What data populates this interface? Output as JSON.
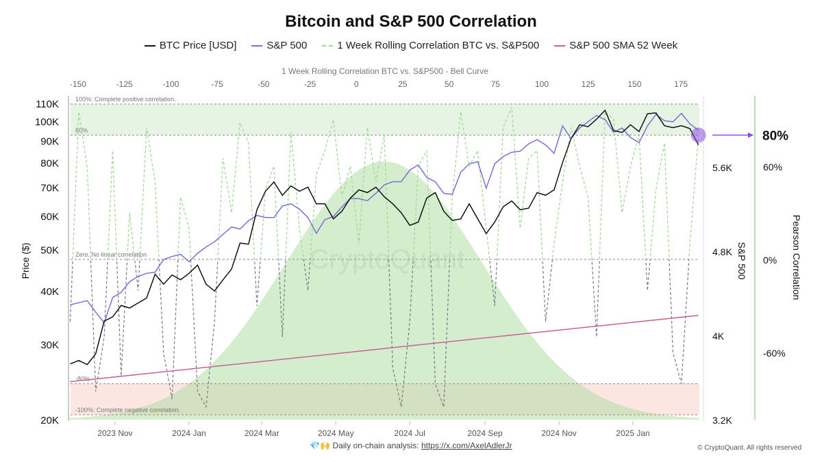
{
  "title": "Bitcoin and S&P 500 Correlation",
  "legend": [
    {
      "label": "BTC Price [USD]",
      "color": "#111111",
      "style": "solid"
    },
    {
      "label": "S&P 500",
      "color": "#7b6fd6",
      "style": "solid"
    },
    {
      "label": "1 Week Rolling Correlation BTC vs. S&P500",
      "color": "#9bd88f",
      "style": "dashed"
    },
    {
      "label": "S&P 500 SMA 52 Week",
      "color": "#c9609a",
      "style": "solid"
    }
  ],
  "watermark": "CryptoQuant",
  "footer": {
    "text": "💎🙌 Daily on-chain analysis: ",
    "link": "https://x.com/AxelAdlerJr",
    "copyright": "© CryptoQuant. All rights reserved"
  },
  "annotation": {
    "label": "80%",
    "color": "#8a4fe0"
  },
  "chart_data": {
    "type": "line",
    "title": "Bitcoin and S&P 500 Correlation",
    "x_type": "date",
    "x_ticks": [
      "2023 Nov",
      "2024 Jan",
      "2024 Mar",
      "2024 May",
      "2024 Jul",
      "2024 Sep",
      "2024 Nov",
      "2025 Jan"
    ],
    "x_tick_dates": [
      "2023-11-01",
      "2024-01-01",
      "2024-03-01",
      "2024-05-01",
      "2024-07-01",
      "2024-09-01",
      "2024-11-01",
      "2025-01-01"
    ],
    "dates": [
      "2023-09-25",
      "2023-10-02",
      "2023-10-09",
      "2023-10-16",
      "2023-10-23",
      "2023-10-30",
      "2023-11-06",
      "2023-11-13",
      "2023-11-20",
      "2023-11-27",
      "2023-12-04",
      "2023-12-11",
      "2023-12-18",
      "2023-12-25",
      "2024-01-01",
      "2024-01-08",
      "2024-01-15",
      "2024-01-22",
      "2024-01-29",
      "2024-02-05",
      "2024-02-12",
      "2024-02-19",
      "2024-02-26",
      "2024-03-04",
      "2024-03-11",
      "2024-03-18",
      "2024-03-25",
      "2024-04-01",
      "2024-04-08",
      "2024-04-15",
      "2024-04-22",
      "2024-04-29",
      "2024-05-06",
      "2024-05-13",
      "2024-05-20",
      "2024-05-27",
      "2024-06-03",
      "2024-06-10",
      "2024-06-17",
      "2024-06-24",
      "2024-07-01",
      "2024-07-08",
      "2024-07-15",
      "2024-07-22",
      "2024-07-29",
      "2024-08-05",
      "2024-08-12",
      "2024-08-19",
      "2024-08-26",
      "2024-09-02",
      "2024-09-09",
      "2024-09-16",
      "2024-09-23",
      "2024-09-30",
      "2024-10-07",
      "2024-10-14",
      "2024-10-21",
      "2024-10-28",
      "2024-11-04",
      "2024-11-11",
      "2024-11-18",
      "2024-11-25",
      "2024-12-02",
      "2024-12-09",
      "2024-12-16",
      "2024-12-23",
      "2024-12-30",
      "2025-01-06",
      "2025-01-13",
      "2025-01-20",
      "2025-01-27",
      "2025-02-03",
      "2025-02-10",
      "2025-02-17",
      "2025-02-24"
    ],
    "left_axis": {
      "label": "Price ($)",
      "scale": "log",
      "range": [
        20000,
        110000
      ],
      "ticks": [
        20000,
        30000,
        40000,
        50000,
        60000,
        70000,
        80000,
        90000,
        100000,
        110000
      ],
      "tick_labels": [
        "20K",
        "30K",
        "40K",
        "50K",
        "60K",
        "70K",
        "80K",
        "90K",
        "100K",
        "110K"
      ]
    },
    "right_axis_sp": {
      "label": "S&P 500",
      "scale": "linear",
      "range": [
        3200,
        6190
      ],
      "ticks": [
        3200,
        4000,
        4800,
        5600
      ],
      "tick_labels": [
        "3.2K",
        "4K",
        "4.8K",
        "5.6K"
      ]
    },
    "right_axis_corr": {
      "label": "Pearson Correlation",
      "range": [
        -100,
        100
      ],
      "ticks": [
        -60,
        0,
        60,
        80
      ],
      "tick_labels": [
        "-60%",
        "0%",
        "60%",
        "80%"
      ]
    },
    "top_axis": {
      "label": "1 Week Rolling Correlation BTC vs. S&P500 - Bell Curve",
      "ticks": [
        -150,
        -125,
        -100,
        -75,
        -50,
        -25,
        0,
        25,
        50,
        75,
        100,
        125,
        150,
        175
      ],
      "tick_labels": [
        "-150",
        "-125",
        "-100",
        "-75",
        "-50",
        "-25",
        "0",
        "25",
        "50",
        "75",
        "100",
        "125",
        "150",
        "175"
      ]
    },
    "bell_curve": {
      "mean": 15,
      "std": 53,
      "range": [
        -155,
        185
      ]
    },
    "reference_lines": [
      {
        "value": 100,
        "label": "100%: Complete positive correlation."
      },
      {
        "value": 80,
        "label": "80%"
      },
      {
        "value": 0,
        "label": "Zero. No linear correlation"
      },
      {
        "value": -80,
        "label": "-80%"
      },
      {
        "value": -100,
        "label": "-100%: Complete negative correlation."
      }
    ],
    "bands": [
      {
        "from": 80,
        "to": 100,
        "color": "#e6f4e4"
      },
      {
        "from": -100,
        "to": -80,
        "color": "#fbe6e2"
      }
    ],
    "series": [
      {
        "name": "BTC Price [USD]",
        "axis": "left",
        "color": "#111111",
        "values": [
          27000,
          27500,
          26900,
          28500,
          34000,
          34800,
          37000,
          36500,
          37500,
          38500,
          43800,
          41500,
          43600,
          42500,
          44000,
          46000,
          41500,
          40000,
          42500,
          45000,
          51800,
          51500,
          62000,
          68500,
          72000,
          67000,
          70500,
          68500,
          70000,
          64000,
          64000,
          59000,
          61500,
          66000,
          69000,
          68000,
          70000,
          66500,
          64000,
          61000,
          57000,
          58000,
          66000,
          68000,
          61500,
          58500,
          59000,
          64000,
          59000,
          54500,
          58000,
          63000,
          65000,
          62000,
          62500,
          68000,
          67000,
          69000,
          80000,
          91000,
          98000,
          97000,
          101000,
          106000,
          95000,
          94000,
          98000,
          94500,
          104000,
          104500,
          97500,
          96500,
          97500,
          96000,
          88000
        ]
      },
      {
        "name": "S&P 500",
        "axis": "right_sp",
        "color": "#7b6fd6",
        "values": [
          4290,
          4310,
          4330,
          4220,
          4120,
          4360,
          4410,
          4510,
          4560,
          4590,
          4600,
          4720,
          4750,
          4770,
          4700,
          4780,
          4840,
          4890,
          4960,
          5030,
          5010,
          5090,
          5140,
          5120,
          5120,
          5230,
          5250,
          5200,
          5120,
          4970,
          5100,
          5130,
          5220,
          5300,
          5300,
          5280,
          5350,
          5430,
          5460,
          5460,
          5570,
          5620,
          5500,
          5460,
          5350,
          5340,
          5550,
          5630,
          5650,
          5400,
          5630,
          5700,
          5740,
          5750,
          5820,
          5860,
          5810,
          5730,
          5990,
          5870,
          5970,
          6030,
          6090,
          6050,
          5930,
          5970,
          5880,
          5830,
          5990,
          6100,
          6040,
          6030,
          6110,
          6010,
          5950
        ]
      },
      {
        "name": "1 Week Rolling Correlation BTC vs. S&P500",
        "axis": "right_corr",
        "color": "#9bd88f",
        "negative_color": "#77778a",
        "values": [
          -40,
          95,
          60,
          -85,
          -50,
          70,
          -75,
          30,
          -20,
          85,
          50,
          -60,
          -90,
          40,
          20,
          -85,
          -95,
          -40,
          65,
          30,
          88,
          75,
          -30,
          45,
          60,
          -50,
          82,
          20,
          -20,
          55,
          70,
          90,
          40,
          60,
          10,
          85,
          50,
          80,
          -70,
          -95,
          -40,
          60,
          70,
          -80,
          -95,
          40,
          95,
          60,
          70,
          20,
          -30,
          85,
          98,
          20,
          65,
          70,
          -40,
          10,
          50,
          85,
          60,
          40,
          -50,
          95,
          90,
          30,
          60,
          80,
          -20,
          45,
          75,
          -60,
          -80,
          10,
          80
        ]
      },
      {
        "name": "S&P 500 SMA 52 Week",
        "axis": "right_sp",
        "color": "#c9609a",
        "points": [
          {
            "date": "2023-09-25",
            "value": 3560
          },
          {
            "date": "2025-02-24",
            "value": 4190
          }
        ]
      }
    ]
  }
}
